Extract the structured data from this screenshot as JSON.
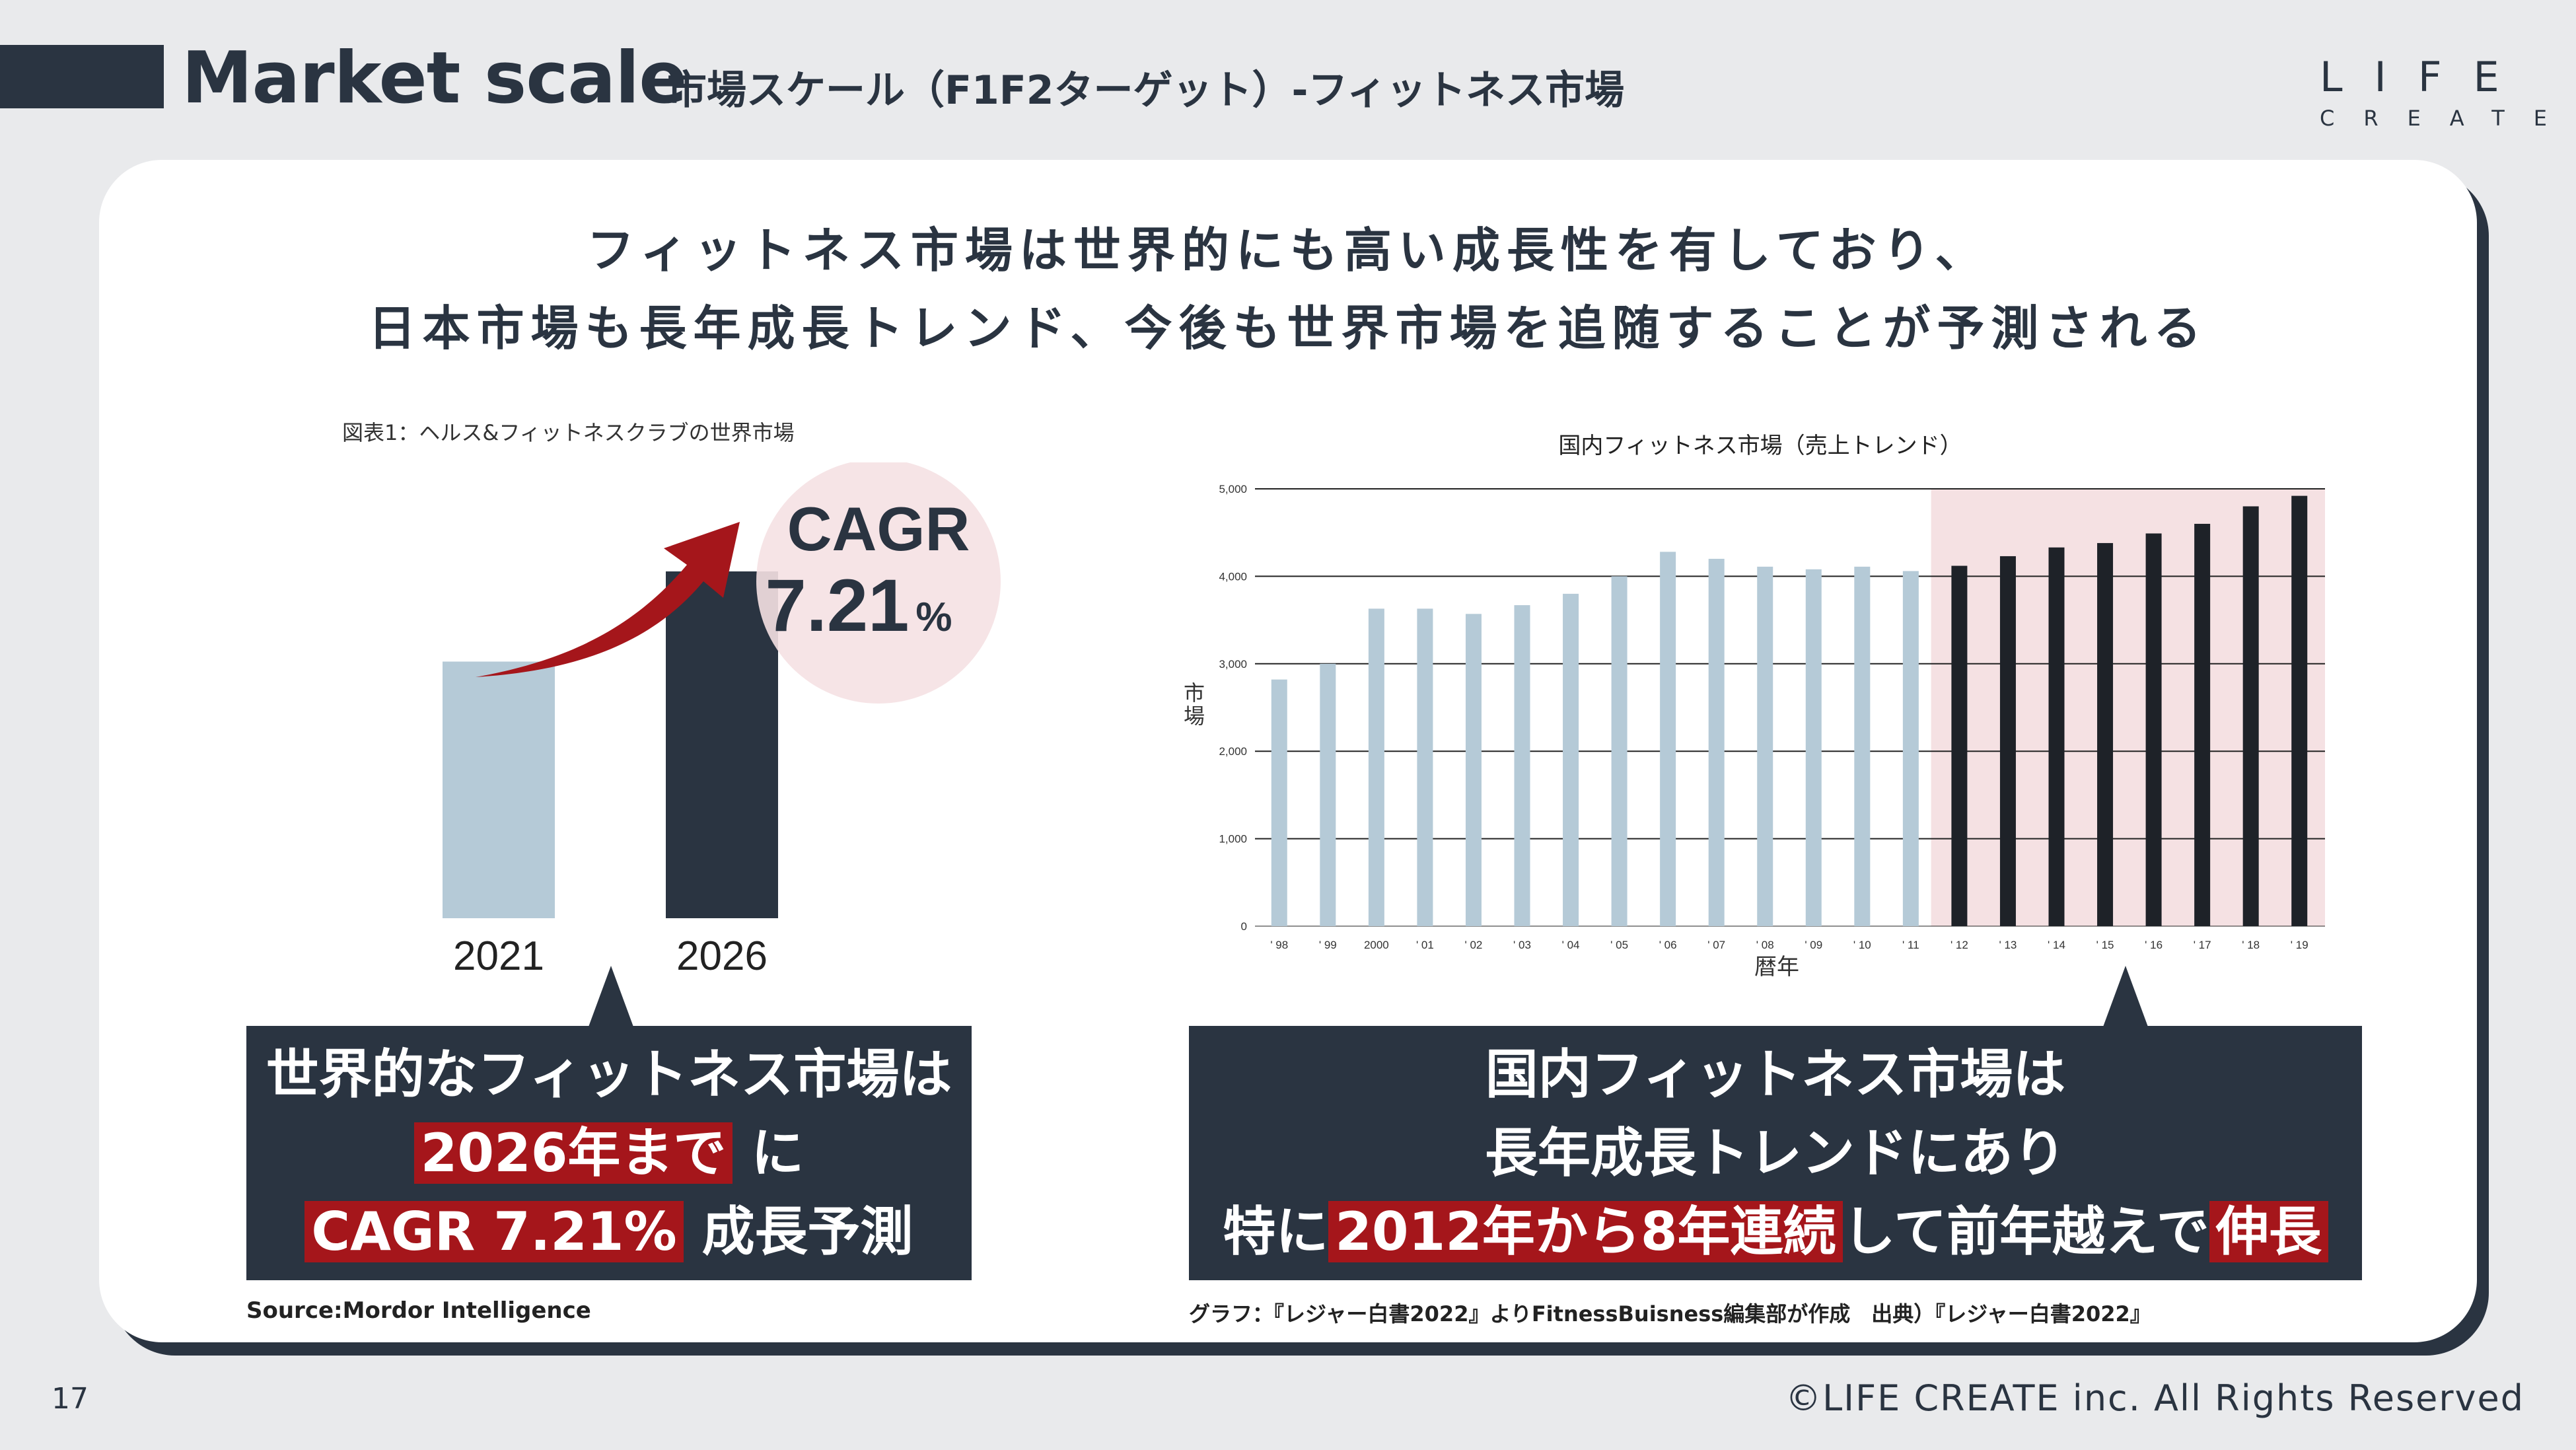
{
  "header": {
    "title": "Market scale",
    "subtitle": "市場スケール（F1F2ターゲット）-フィットネス市場",
    "logo_top": "LIFE",
    "logo_bottom": "CREATE"
  },
  "headline": {
    "line1": "フィットネス市場は世界的にも高い成長性を有しており、",
    "line2": "日本市場も長年成長トレンド、今後も世界市場を追随することが予測される"
  },
  "left": {
    "figure_caption": "図表1：ヘルス&フィットネスクラブの世界市場",
    "cagr_label": "CAGR",
    "cagr_value": "7.21",
    "cagr_unit": "%",
    "callout_line1": "世界的なフィットネス市場は",
    "callout_hl1": "2026年まで",
    "callout_after1": "に",
    "callout_hl2": "CAGR 7.21%",
    "callout_after2": "成長予測",
    "source": "Source:Mordor Intelligence"
  },
  "right": {
    "callout_line1": "国内フィットネス市場は",
    "callout_line2": "長年成長トレンドにあり",
    "callout_pre3": "特に",
    "callout_hl3": "2012年から8年連続",
    "callout_mid3": "して前年越えで",
    "callout_hl4": "伸長",
    "source": "グラフ：『レジャー白書2022』よりFitnessBuisness編集部が作成　出典）『レジャー白書2022』"
  },
  "colors": {
    "navy": "#2a3441",
    "light_blue": "#b5cad7",
    "red": "#a5161b",
    "pink_bg": "#f5e1e3"
  },
  "chart_data": [
    {
      "type": "bar",
      "title": "",
      "categories": [
        "2021",
        "2026"
      ],
      "values": [
        0.74,
        1.0
      ],
      "value_unit": "relative",
      "annotation": "CAGR 7.21%",
      "colors": [
        "#b5cad7",
        "#2a3441"
      ]
    },
    {
      "type": "bar",
      "title": "国内フィットネス市場（売上トレンド）",
      "xlabel": "暦年",
      "ylabel": "市場",
      "categories": [
        "' 98",
        "' 99",
        "2000",
        "' 01",
        "' 02",
        "' 03",
        "' 04",
        "' 05",
        "' 06",
        "' 07",
        "' 08",
        "' 09",
        "' 10",
        "' 11",
        "' 12",
        "' 13",
        "' 14",
        "' 15",
        "' 16",
        "' 17",
        "' 18",
        "' 19"
      ],
      "values": [
        2820,
        3000,
        3630,
        3630,
        3570,
        3670,
        3800,
        4000,
        4280,
        4200,
        4110,
        4080,
        4110,
        4060,
        4120,
        4230,
        4330,
        4380,
        4490,
        4600,
        4800,
        4920
      ],
      "yticks": [
        "0",
        "1,000",
        "2,000",
        "3,000",
        "4,000",
        "5,000"
      ],
      "ylim": [
        0,
        5000
      ],
      "grid": true,
      "highlight_from": "' 12"
    }
  ]
}
